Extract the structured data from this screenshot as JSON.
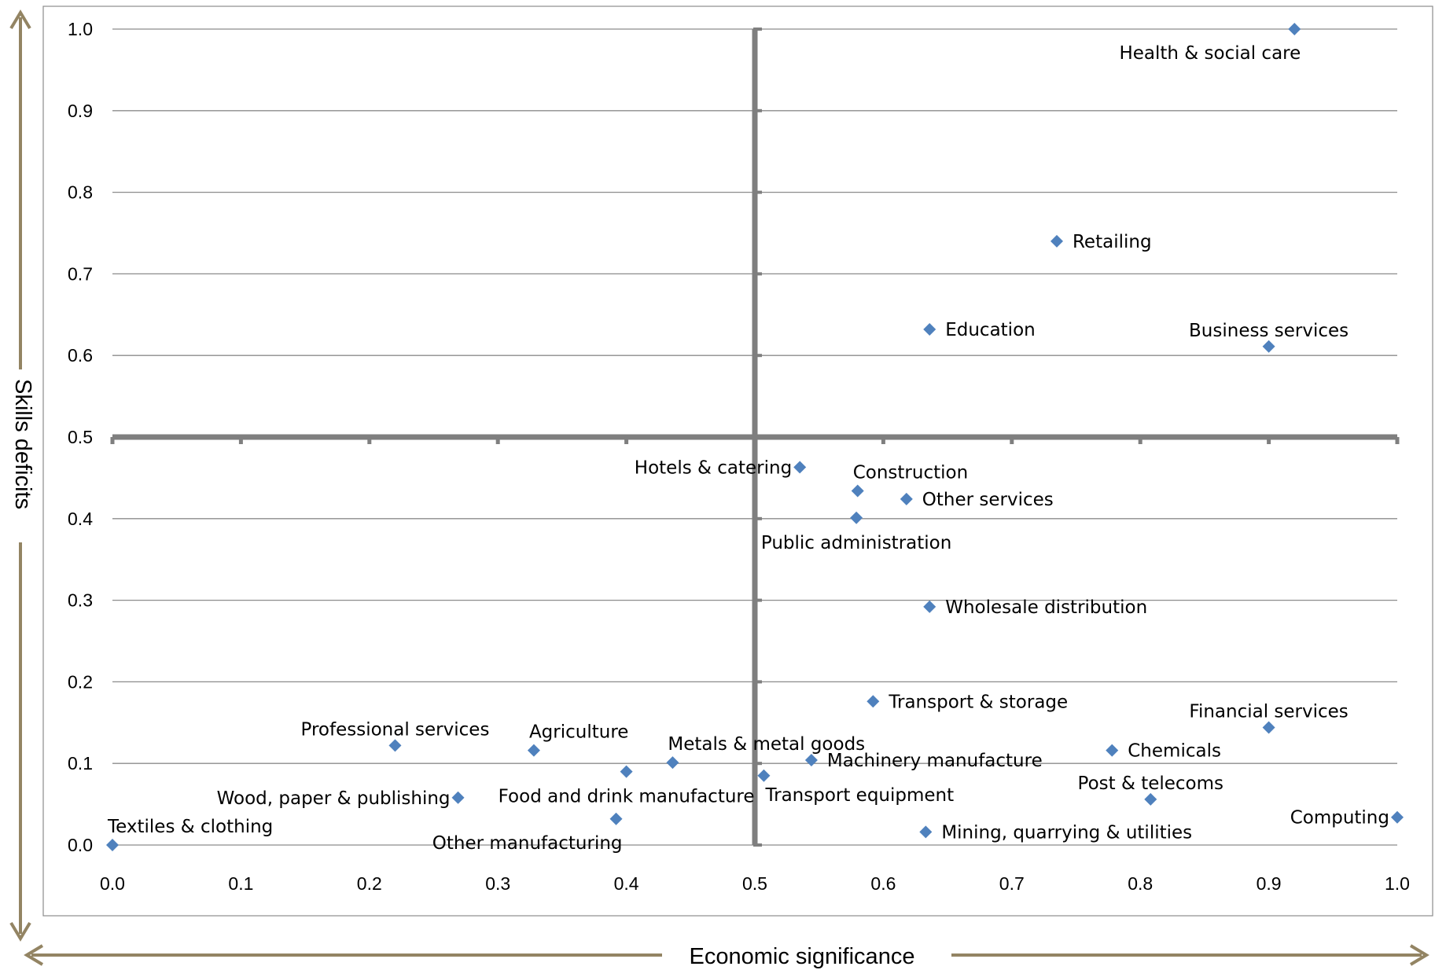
{
  "chart_data": {
    "type": "scatter",
    "xlabel": "Economic significance",
    "ylabel": "Skills deficits",
    "xlim": [
      0,
      1
    ],
    "ylim": [
      0,
      1
    ],
    "x_ticks": [
      "0.0",
      "0.1",
      "0.2",
      "0.3",
      "0.4",
      "0.5",
      "0.6",
      "0.7",
      "0.8",
      "0.9",
      "1.0"
    ],
    "y_ticks": [
      "0.0",
      "0.1",
      "0.2",
      "0.3",
      "0.4",
      "0.5",
      "0.6",
      "0.7",
      "0.8",
      "0.9",
      "1.0"
    ],
    "grid": "horizontal",
    "quadrant_lines": {
      "x": 0.5,
      "y": 0.5
    },
    "colors": {
      "marker": "#4f81bd",
      "grid": "#8c8c8c",
      "quadrant": "#7f7f7f",
      "arrow": "#938463"
    },
    "points": [
      {
        "name": "Health & social care",
        "x": 0.92,
        "y": 1.0,
        "label_pos": "below-left"
      },
      {
        "name": "Retailing",
        "x": 0.735,
        "y": 0.74,
        "label_pos": "right"
      },
      {
        "name": "Education",
        "x": 0.636,
        "y": 0.632,
        "label_pos": "right"
      },
      {
        "name": "Business services",
        "x": 0.9,
        "y": 0.611,
        "label_pos": "above"
      },
      {
        "name": "Hotels & catering",
        "x": 0.535,
        "y": 0.463,
        "label_pos": "left"
      },
      {
        "name": "Construction",
        "x": 0.58,
        "y": 0.434,
        "label_pos": "above-right"
      },
      {
        "name": "Other services",
        "x": 0.618,
        "y": 0.424,
        "label_pos": "right"
      },
      {
        "name": "Public administration",
        "x": 0.579,
        "y": 0.401,
        "label_pos": "below"
      },
      {
        "name": "Wholesale distribution",
        "x": 0.636,
        "y": 0.292,
        "label_pos": "right"
      },
      {
        "name": "Transport & storage",
        "x": 0.592,
        "y": 0.176,
        "label_pos": "right"
      },
      {
        "name": "Financial services",
        "x": 0.9,
        "y": 0.144,
        "label_pos": "above"
      },
      {
        "name": "Professional services",
        "x": 0.22,
        "y": 0.122,
        "label_pos": "above"
      },
      {
        "name": "Agriculture",
        "x": 0.328,
        "y": 0.116,
        "label_pos": "above-right"
      },
      {
        "name": "Metals & metal goods",
        "x": 0.436,
        "y": 0.101,
        "label_pos": "above-right"
      },
      {
        "name": "Food and drink manufacture",
        "x": 0.4,
        "y": 0.09,
        "label_pos": "below"
      },
      {
        "name": "Transport equipment",
        "x": 0.507,
        "y": 0.085,
        "label_pos": "below-right"
      },
      {
        "name": "Machinery manufacture",
        "x": 0.544,
        "y": 0.104,
        "label_pos": "right"
      },
      {
        "name": "Chemicals",
        "x": 0.778,
        "y": 0.116,
        "label_pos": "right"
      },
      {
        "name": "Post & telecoms",
        "x": 0.808,
        "y": 0.056,
        "label_pos": "above"
      },
      {
        "name": "Computing",
        "x": 1.0,
        "y": 0.034,
        "label_pos": "left"
      },
      {
        "name": "Wood, paper & publishing",
        "x": 0.269,
        "y": 0.058,
        "label_pos": "left"
      },
      {
        "name": "Other manufacturing",
        "x": 0.392,
        "y": 0.032,
        "label_pos": "below-left"
      },
      {
        "name": "Mining, quarrying & utilities",
        "x": 0.633,
        "y": 0.016,
        "label_pos": "right"
      },
      {
        "name": "Textiles & clothing",
        "x": 0.0,
        "y": 0.0,
        "label_pos": "above-right"
      }
    ]
  }
}
